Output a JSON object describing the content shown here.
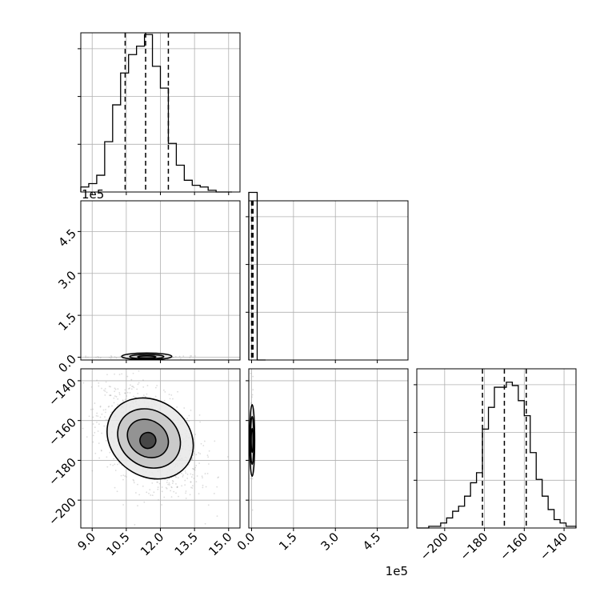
{
  "chart_data": {
    "type": "corner",
    "grid": true,
    "colors": {
      "hist": "#000000",
      "quantile": "#000000",
      "grid": "#b0b0b0",
      "points": "#9a9a9a"
    },
    "params": [
      {
        "range": [
          8.5,
          15.5
        ],
        "ticks": [
          9.0,
          10.5,
          12.0,
          13.5,
          15.0
        ],
        "tick_labels": [
          "9.0",
          "10.5",
          "12.0",
          "13.5",
          "15.0"
        ]
      },
      {
        "range": [
          -0.1,
          5.6
        ],
        "ticks": [
          0.0,
          1.5,
          3.0,
          4.5
        ],
        "tick_labels": [
          "0.0",
          "1.5",
          "3.0",
          "4.5"
        ],
        "offset_label": "1e5"
      },
      {
        "range": [
          -214,
          -134
        ],
        "ticks": [
          -200,
          -180,
          -160,
          -140
        ],
        "tick_labels": [
          "−200",
          "−180",
          "−160",
          "−140"
        ]
      }
    ],
    "diagonal_hists": [
      {
        "bin_edges": [
          8.5,
          8.85,
          9.2,
          9.55,
          9.9,
          10.25,
          10.6,
          10.95,
          11.3,
          11.65,
          12.0,
          12.35,
          12.7,
          13.05,
          13.4,
          13.75,
          14.1,
          14.45,
          14.8,
          15.15
        ],
        "counts": [
          0.03,
          0.05,
          0.1,
          0.3,
          0.52,
          0.71,
          0.82,
          0.87,
          0.94,
          0.75,
          0.62,
          0.29,
          0.16,
          0.07,
          0.04,
          0.03,
          0.01,
          0.0,
          0.0
        ],
        "quantiles": [
          10.45,
          11.35,
          12.35
        ]
      },
      {
        "bin_edges": [
          -0.1,
          0.2,
          0.5
        ],
        "counts": [
          1.0,
          0.0
        ],
        "quantiles": [
          0.0,
          0.02,
          0.05
        ]
      },
      {
        "bin_edges": [
          -214,
          -211,
          -208,
          -205,
          -202,
          -199,
          -196,
          -193,
          -190,
          -187,
          -184,
          -181,
          -178,
          -175,
          -172,
          -169,
          -166,
          -163,
          -160,
          -157,
          -154,
          -151,
          -148,
          -145,
          -142,
          -139,
          -136,
          -134
        ],
        "counts": [
          0.0,
          0.0,
          0.01,
          0.01,
          0.03,
          0.06,
          0.1,
          0.13,
          0.19,
          0.27,
          0.33,
          0.59,
          0.72,
          0.84,
          0.84,
          0.87,
          0.85,
          0.76,
          0.67,
          0.45,
          0.29,
          0.19,
          0.11,
          0.05,
          0.03,
          0.01,
          0.01
        ],
        "quantiles": [
          -181,
          -170,
          -159
        ]
      }
    ],
    "panels": [
      {
        "pair": [
          0,
          1
        ],
        "contours": [
          {
            "cx": 11.4,
            "cy": 0.03,
            "rx": 1.1,
            "ry": 0.12
          },
          {
            "cx": 11.4,
            "cy": 0.02,
            "rx": 0.75,
            "ry": 0.08
          },
          {
            "cx": 11.4,
            "cy": 0.01,
            "rx": 0.4,
            "ry": 0.04
          }
        ],
        "points": {
          "n": 60,
          "x_mean": 11.4,
          "x_sd": 1.3,
          "y_mean": 0.0,
          "y_sd": 0.03
        }
      },
      {
        "pair": [
          0,
          2
        ],
        "contours": [
          {
            "cx": 11.55,
            "cy": -169,
            "rx": 2.0,
            "ry": 19,
            "rho": -0.45
          },
          {
            "cx": 11.5,
            "cy": -169,
            "rx": 1.45,
            "ry": 14,
            "rho": -0.45
          },
          {
            "cx": 11.45,
            "cy": -169,
            "rx": 0.95,
            "ry": 9,
            "rho": -0.45
          },
          {
            "cx": 11.45,
            "cy": -170,
            "rx": 0.35,
            "ry": 4,
            "rho": -0.45
          }
        ],
        "points": {
          "n": 1200,
          "x_mean": 11.5,
          "x_sd": 1.1,
          "y_mean": -169,
          "y_sd": 13,
          "rho": -0.45
        }
      },
      {
        "pair": [
          1,
          2
        ],
        "contours": [
          {
            "cx": 0.02,
            "cy": -170,
            "rx": 0.09,
            "ry": 18
          },
          {
            "cx": 0.02,
            "cy": -170,
            "rx": 0.06,
            "ry": 12
          },
          {
            "cx": 0.02,
            "cy": -170,
            "rx": 0.03,
            "ry": 6
          }
        ],
        "points": {
          "n": 80,
          "x_mean": 0.0,
          "x_sd": 0.03,
          "y_mean": -170,
          "y_sd": 14
        }
      }
    ]
  }
}
